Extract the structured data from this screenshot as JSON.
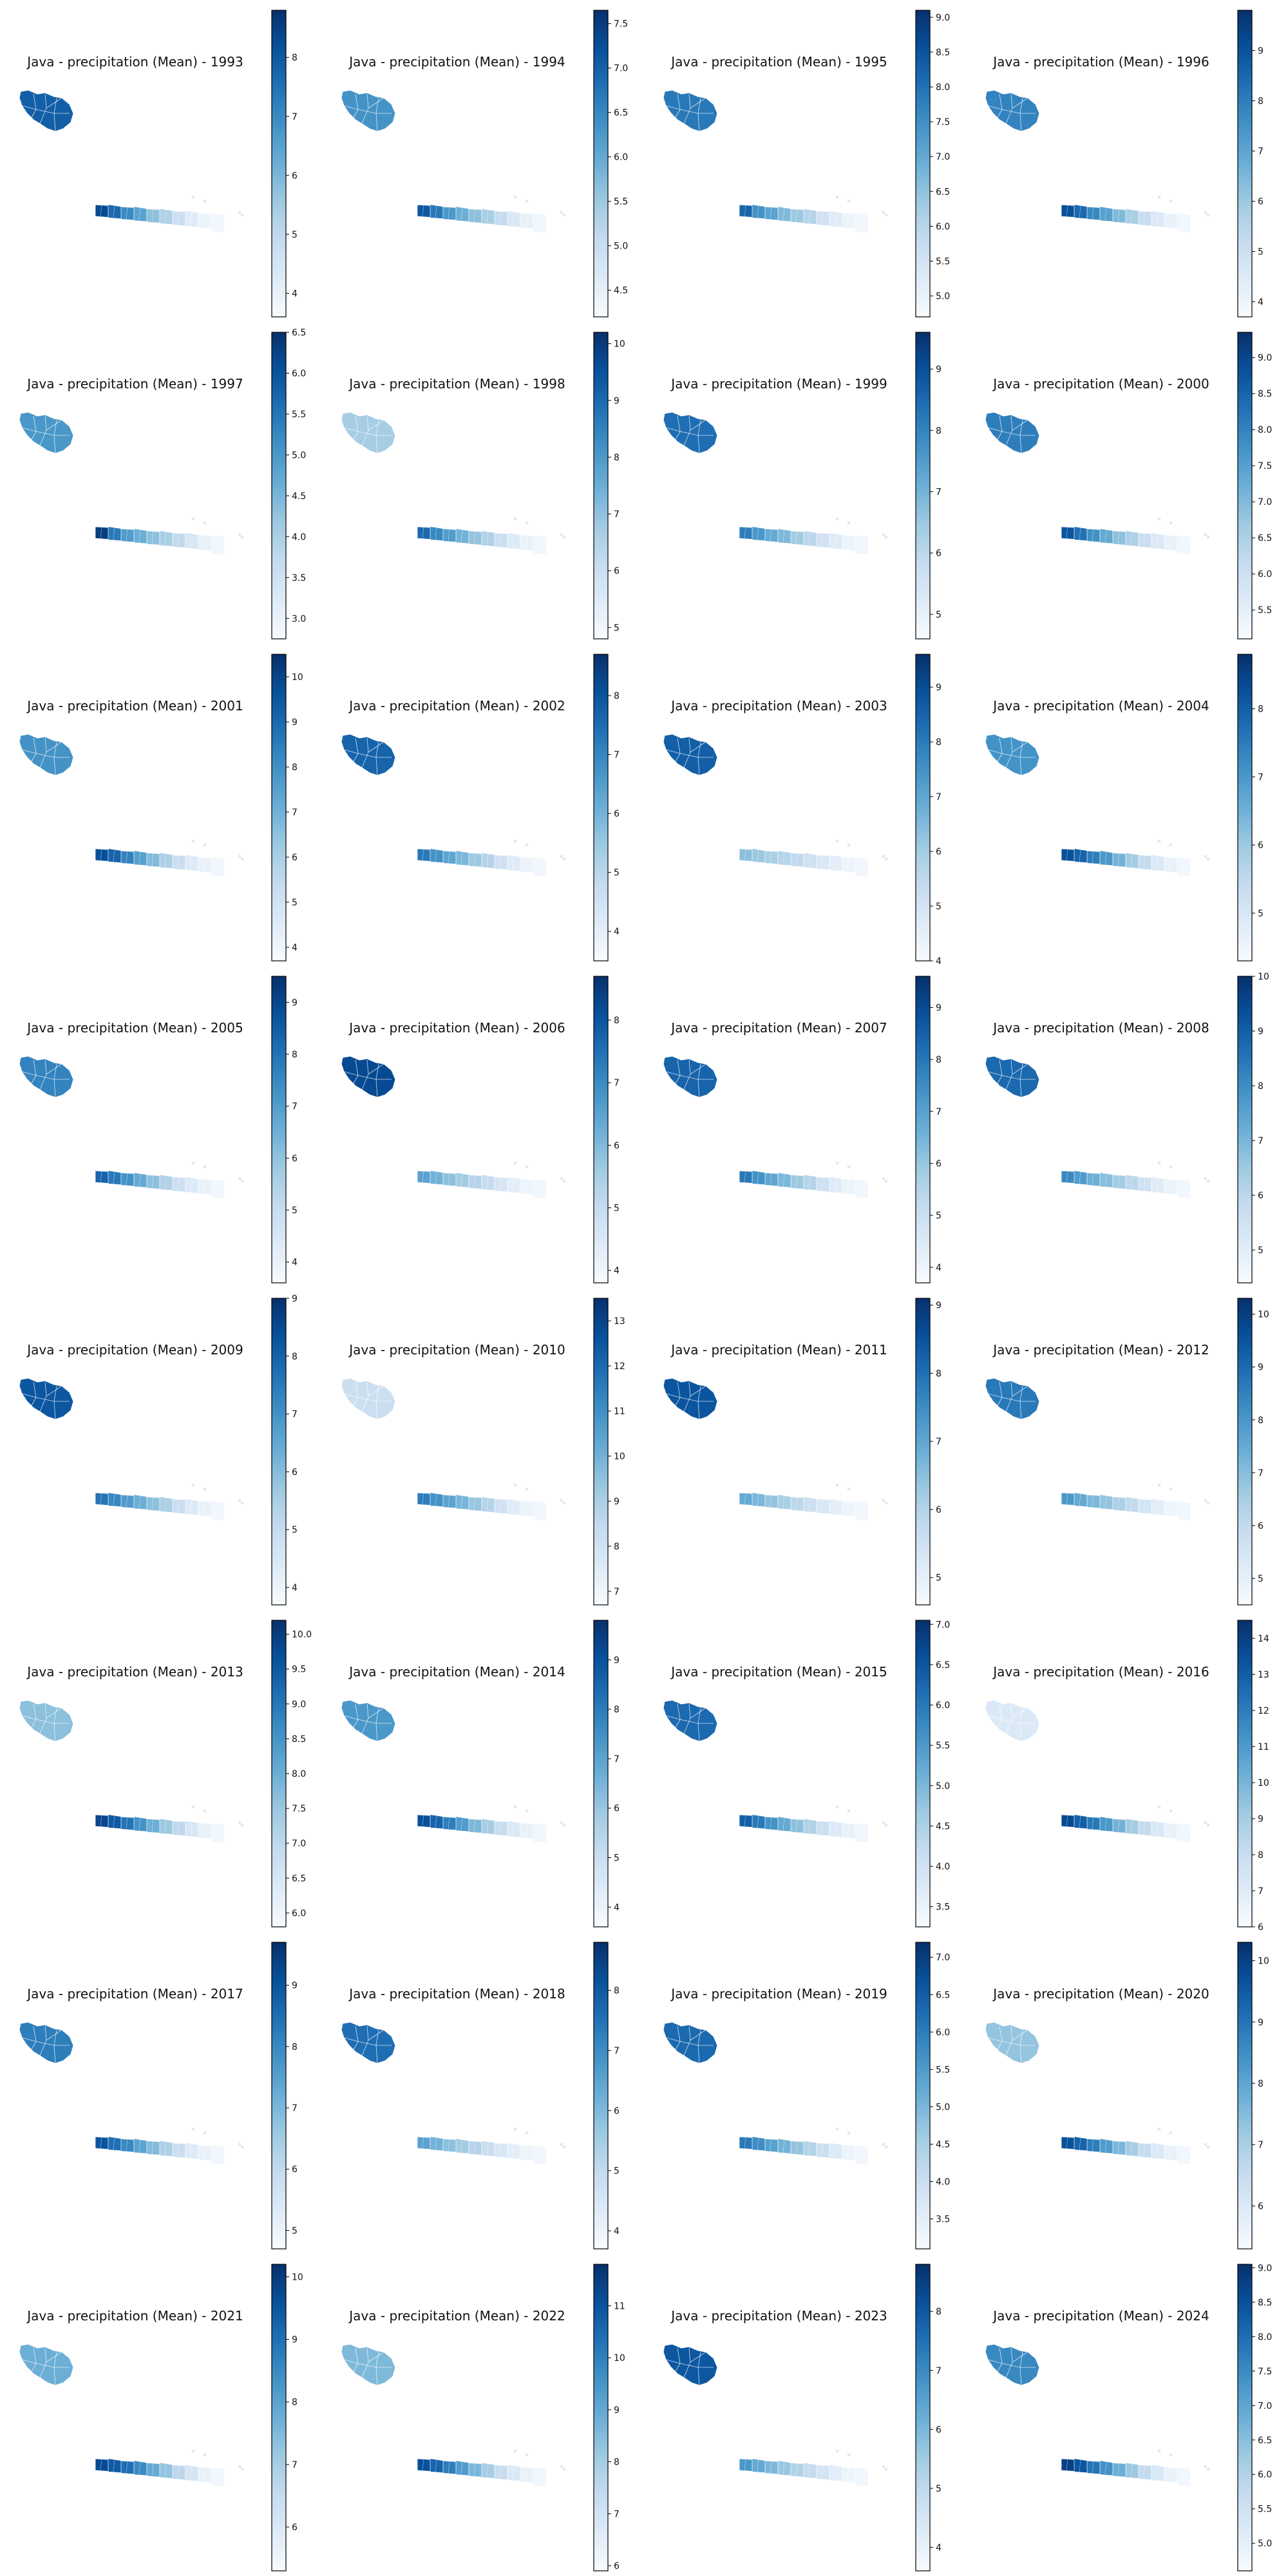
{
  "figure": {
    "colormap": "Blues",
    "colormap_stops": [
      "#f7fbff",
      "#deebf7",
      "#c6dbef",
      "#9ecae1",
      "#6baed6",
      "#4292c6",
      "#2171b5",
      "#08519c",
      "#08306b"
    ],
    "background": "#ffffff",
    "panel_bg": "#ffffff",
    "region_edge": "#ffffff"
  },
  "chart_data": [
    {
      "type": "choropleth",
      "year": 1993,
      "title": "Java - precipitation (Mean) - 1993",
      "colorbar_ticks": [
        "4",
        "5",
        "6",
        "7",
        "8"
      ],
      "colorbar_tick_values": [
        4,
        5,
        6,
        7,
        8
      ],
      "vmin": 3.6,
      "vmax": 8.8,
      "west_level": 0.82,
      "gradient_levels": [
        0.9,
        0.78,
        0.65,
        0.55,
        0.42,
        0.32,
        0.22,
        0.12,
        0.06,
        0.03
      ]
    },
    {
      "type": "choropleth",
      "year": 1994,
      "title": "Java - precipitation (Mean) - 1994",
      "colorbar_ticks": [
        "4.5",
        "5.0",
        "5.5",
        "6.0",
        "6.5",
        "7.0",
        "7.5"
      ],
      "colorbar_tick_values": [
        4.5,
        5.0,
        5.5,
        6.0,
        6.5,
        7.0,
        7.5
      ],
      "vmin": 4.2,
      "vmax": 7.65,
      "west_level": 0.62,
      "gradient_levels": [
        0.85,
        0.72,
        0.6,
        0.5,
        0.42,
        0.34,
        0.25,
        0.15,
        0.08,
        0.04
      ]
    },
    {
      "type": "choropleth",
      "year": 1995,
      "title": "Java - precipitation (Mean) - 1995",
      "colorbar_ticks": [
        "5.0",
        "5.5",
        "6.0",
        "6.5",
        "7.0",
        "7.5",
        "8.0",
        "8.5",
        "9.0"
      ],
      "colorbar_tick_values": [
        5.0,
        5.5,
        6.0,
        6.5,
        7.0,
        7.5,
        8.0,
        8.5,
        9.0
      ],
      "vmin": 4.7,
      "vmax": 9.1,
      "west_level": 0.72,
      "gradient_levels": [
        0.8,
        0.62,
        0.55,
        0.45,
        0.38,
        0.3,
        0.2,
        0.12,
        0.06,
        0.03
      ]
    },
    {
      "type": "choropleth",
      "year": 1996,
      "title": "Java - precipitation (Mean) - 1996",
      "colorbar_ticks": [
        "4",
        "5",
        "6",
        "7",
        "8",
        "9"
      ],
      "colorbar_tick_values": [
        4,
        5,
        6,
        7,
        8,
        9
      ],
      "vmin": 3.7,
      "vmax": 9.8,
      "west_level": 0.68,
      "gradient_levels": [
        0.88,
        0.78,
        0.66,
        0.56,
        0.45,
        0.34,
        0.24,
        0.14,
        0.07,
        0.03
      ]
    },
    {
      "type": "choropleth",
      "year": 1997,
      "title": "Java - precipitation (Mean) - 1997",
      "colorbar_ticks": [
        "3.0",
        "3.5",
        "4.0",
        "4.5",
        "5.0",
        "5.5",
        "6.0",
        "6.5"
      ],
      "colorbar_tick_values": [
        3.0,
        3.5,
        4.0,
        4.5,
        5.0,
        5.5,
        6.0,
        6.5
      ],
      "vmin": 2.75,
      "vmax": 6.5,
      "west_level": 0.6,
      "gradient_levels": [
        0.95,
        0.72,
        0.58,
        0.5,
        0.42,
        0.34,
        0.26,
        0.16,
        0.08,
        0.04
      ]
    },
    {
      "type": "choropleth",
      "year": 1998,
      "title": "Java - precipitation (Mean) - 1998",
      "colorbar_ticks": [
        "5",
        "6",
        "7",
        "8",
        "9",
        "10"
      ],
      "colorbar_tick_values": [
        5,
        6,
        7,
        8,
        9,
        10
      ],
      "vmin": 4.8,
      "vmax": 10.2,
      "west_level": 0.35,
      "gradient_levels": [
        0.78,
        0.66,
        0.58,
        0.48,
        0.4,
        0.32,
        0.22,
        0.13,
        0.07,
        0.03
      ]
    },
    {
      "type": "choropleth",
      "year": 1999,
      "title": "Java - precipitation (Mean) - 1999",
      "colorbar_ticks": [
        "5",
        "6",
        "7",
        "8",
        "9"
      ],
      "colorbar_tick_values": [
        5,
        6,
        7,
        8,
        9
      ],
      "vmin": 4.6,
      "vmax": 9.6,
      "west_level": 0.76,
      "gradient_levels": [
        0.7,
        0.6,
        0.52,
        0.45,
        0.36,
        0.28,
        0.2,
        0.12,
        0.06,
        0.03
      ]
    },
    {
      "type": "choropleth",
      "year": 2000,
      "title": "Java - precipitation (Mean) - 2000",
      "colorbar_ticks": [
        "5.5",
        "6.0",
        "6.5",
        "7.0",
        "7.5",
        "8.0",
        "8.5",
        "9.0"
      ],
      "colorbar_tick_values": [
        5.5,
        6.0,
        6.5,
        7.0,
        7.5,
        8.0,
        8.5,
        9.0
      ],
      "vmin": 5.1,
      "vmax": 9.35,
      "west_level": 0.7,
      "gradient_levels": [
        0.86,
        0.75,
        0.63,
        0.52,
        0.42,
        0.33,
        0.23,
        0.14,
        0.07,
        0.03
      ]
    },
    {
      "type": "choropleth",
      "year": 2001,
      "title": "Java - precipitation (Mean) - 2001",
      "colorbar_ticks": [
        "4",
        "5",
        "6",
        "7",
        "8",
        "9",
        "10"
      ],
      "colorbar_tick_values": [
        4,
        5,
        6,
        7,
        8,
        9,
        10
      ],
      "vmin": 3.7,
      "vmax": 10.5,
      "west_level": 0.62,
      "gradient_levels": [
        0.88,
        0.8,
        0.68,
        0.56,
        0.44,
        0.33,
        0.23,
        0.13,
        0.07,
        0.03
      ]
    },
    {
      "type": "choropleth",
      "year": 2002,
      "title": "Java - precipitation (Mean) - 2002",
      "colorbar_ticks": [
        "4",
        "5",
        "6",
        "7",
        "8"
      ],
      "colorbar_tick_values": [
        4,
        5,
        6,
        7,
        8
      ],
      "vmin": 3.5,
      "vmax": 8.7,
      "west_level": 0.8,
      "gradient_levels": [
        0.72,
        0.62,
        0.54,
        0.46,
        0.38,
        0.3,
        0.2,
        0.12,
        0.06,
        0.03
      ]
    },
    {
      "type": "choropleth",
      "year": 2003,
      "title": "Java - precipitation (Mean) - 2003",
      "colorbar_ticks": [
        "4",
        "5",
        "6",
        "7",
        "8",
        "9"
      ],
      "colorbar_tick_values": [
        4,
        5,
        6,
        7,
        8,
        9
      ],
      "vmin": 4.0,
      "vmax": 9.6,
      "west_level": 0.82,
      "gradient_levels": [
        0.42,
        0.38,
        0.34,
        0.3,
        0.26,
        0.2,
        0.15,
        0.1,
        0.05,
        0.03
      ]
    },
    {
      "type": "choropleth",
      "year": 2004,
      "title": "Java - precipitation (Mean) - 2004",
      "colorbar_ticks": [
        "5",
        "6",
        "7",
        "8"
      ],
      "colorbar_tick_values": [
        5,
        6,
        7,
        8
      ],
      "vmin": 4.3,
      "vmax": 8.8,
      "west_level": 0.62,
      "gradient_levels": [
        0.88,
        0.8,
        0.7,
        0.6,
        0.48,
        0.36,
        0.25,
        0.14,
        0.07,
        0.03
      ]
    },
    {
      "type": "choropleth",
      "year": 2005,
      "title": "Java - precipitation (Mean) - 2005",
      "colorbar_ticks": [
        "4",
        "5",
        "6",
        "7",
        "8",
        "9"
      ],
      "colorbar_tick_values": [
        4,
        5,
        6,
        7,
        8,
        9
      ],
      "vmin": 3.6,
      "vmax": 9.5,
      "west_level": 0.68,
      "gradient_levels": [
        0.8,
        0.72,
        0.62,
        0.52,
        0.42,
        0.32,
        0.22,
        0.13,
        0.07,
        0.03
      ]
    },
    {
      "type": "choropleth",
      "year": 2006,
      "title": "Java - precipitation (Mean) - 2006",
      "colorbar_ticks": [
        "4",
        "5",
        "6",
        "7",
        "8"
      ],
      "colorbar_tick_values": [
        4,
        5,
        6,
        7,
        8
      ],
      "vmin": 3.8,
      "vmax": 8.7,
      "west_level": 0.9,
      "gradient_levels": [
        0.55,
        0.48,
        0.42,
        0.36,
        0.3,
        0.24,
        0.17,
        0.1,
        0.05,
        0.03
      ]
    },
    {
      "type": "choropleth",
      "year": 2007,
      "title": "Java - precipitation (Mean) - 2007",
      "colorbar_ticks": [
        "4",
        "5",
        "6",
        "7",
        "8",
        "9"
      ],
      "colorbar_tick_values": [
        4,
        5,
        6,
        7,
        8,
        9
      ],
      "vmin": 3.7,
      "vmax": 9.6,
      "west_level": 0.8,
      "gradient_levels": [
        0.72,
        0.62,
        0.54,
        0.46,
        0.38,
        0.3,
        0.21,
        0.12,
        0.06,
        0.03
      ]
    },
    {
      "type": "choropleth",
      "year": 2008,
      "title": "Java - precipitation (Mean) - 2008",
      "colorbar_ticks": [
        "5",
        "6",
        "7",
        "8",
        "9",
        "10"
      ],
      "colorbar_tick_values": [
        5,
        6,
        7,
        8,
        9,
        10
      ],
      "vmin": 4.4,
      "vmax": 10.0,
      "west_level": 0.78,
      "gradient_levels": [
        0.66,
        0.58,
        0.5,
        0.43,
        0.36,
        0.28,
        0.2,
        0.12,
        0.06,
        0.03
      ]
    },
    {
      "type": "choropleth",
      "year": 2009,
      "title": "Java - precipitation (Mean) - 2009",
      "colorbar_ticks": [
        "4",
        "5",
        "6",
        "7",
        "8",
        "9"
      ],
      "colorbar_tick_values": [
        4,
        5,
        6,
        7,
        8,
        9
      ],
      "vmin": 3.7,
      "vmax": 9.0,
      "west_level": 0.85,
      "gradient_levels": [
        0.74,
        0.66,
        0.58,
        0.5,
        0.42,
        0.33,
        0.23,
        0.13,
        0.07,
        0.03
      ]
    },
    {
      "type": "choropleth",
      "year": 2010,
      "title": "Java - precipitation (Mean) - 2010",
      "colorbar_ticks": [
        "7",
        "8",
        "9",
        "10",
        "11",
        "12",
        "13"
      ],
      "colorbar_tick_values": [
        7,
        8,
        9,
        10,
        11,
        12,
        13
      ],
      "vmin": 6.7,
      "vmax": 13.5,
      "west_level": 0.22,
      "gradient_levels": [
        0.7,
        0.62,
        0.55,
        0.47,
        0.39,
        0.3,
        0.2,
        0.12,
        0.06,
        0.03
      ]
    },
    {
      "type": "choropleth",
      "year": 2011,
      "title": "Java - precipitation (Mean) - 2011",
      "colorbar_ticks": [
        "5",
        "6",
        "7",
        "8",
        "9"
      ],
      "colorbar_tick_values": [
        5,
        6,
        7,
        8,
        9
      ],
      "vmin": 4.6,
      "vmax": 9.1,
      "west_level": 0.86,
      "gradient_levels": [
        0.52,
        0.46,
        0.4,
        0.34,
        0.28,
        0.22,
        0.16,
        0.1,
        0.05,
        0.03
      ]
    },
    {
      "type": "choropleth",
      "year": 2012,
      "title": "Java - precipitation (Mean) - 2012",
      "colorbar_ticks": [
        "5",
        "6",
        "7",
        "8",
        "9",
        "10"
      ],
      "colorbar_tick_values": [
        5,
        6,
        7,
        8,
        9,
        10
      ],
      "vmin": 4.5,
      "vmax": 10.3,
      "west_level": 0.72,
      "gradient_levels": [
        0.6,
        0.52,
        0.46,
        0.4,
        0.33,
        0.26,
        0.18,
        0.11,
        0.05,
        0.03
      ]
    },
    {
      "type": "choropleth",
      "year": 2013,
      "title": "Java - precipitation (Mean) - 2013",
      "colorbar_ticks": [
        "6.0",
        "6.5",
        "7.0",
        "7.5",
        "8.0",
        "8.5",
        "9.0",
        "9.5",
        "10.0"
      ],
      "colorbar_tick_values": [
        6.0,
        6.5,
        7.0,
        7.5,
        8.0,
        8.5,
        9.0,
        9.5,
        10.0
      ],
      "vmin": 5.8,
      "vmax": 10.2,
      "west_level": 0.42,
      "gradient_levels": [
        0.92,
        0.84,
        0.74,
        0.62,
        0.5,
        0.38,
        0.27,
        0.16,
        0.08,
        0.03
      ]
    },
    {
      "type": "choropleth",
      "year": 2014,
      "title": "Java - precipitation (Mean) - 2014",
      "colorbar_ticks": [
        "4",
        "5",
        "6",
        "7",
        "8",
        "9"
      ],
      "colorbar_tick_values": [
        4,
        5,
        6,
        7,
        8,
        9
      ],
      "vmin": 3.6,
      "vmax": 9.8,
      "west_level": 0.6,
      "gradient_levels": [
        0.88,
        0.8,
        0.7,
        0.58,
        0.46,
        0.35,
        0.24,
        0.14,
        0.07,
        0.03
      ]
    },
    {
      "type": "choropleth",
      "year": 2015,
      "title": "Java - precipitation (Mean) - 2015",
      "colorbar_ticks": [
        "3.5",
        "4.0",
        "4.5",
        "5.0",
        "5.5",
        "6.0",
        "6.5",
        "7.0"
      ],
      "colorbar_tick_values": [
        3.5,
        4.0,
        4.5,
        5.0,
        5.5,
        6.0,
        6.5,
        7.0
      ],
      "vmin": 3.25,
      "vmax": 7.05,
      "west_level": 0.78,
      "gradient_levels": [
        0.82,
        0.72,
        0.62,
        0.52,
        0.42,
        0.32,
        0.22,
        0.13,
        0.07,
        0.03
      ]
    },
    {
      "type": "choropleth",
      "year": 2016,
      "title": "Java - precipitation (Mean) - 2016",
      "colorbar_ticks": [
        "6",
        "7",
        "8",
        "9",
        "10",
        "11",
        "12",
        "13",
        "14"
      ],
      "colorbar_tick_values": [
        6,
        7,
        8,
        9,
        10,
        11,
        12,
        13,
        14
      ],
      "vmin": 6.0,
      "vmax": 14.5,
      "west_level": 0.14,
      "gradient_levels": [
        0.9,
        0.82,
        0.72,
        0.6,
        0.48,
        0.36,
        0.25,
        0.15,
        0.07,
        0.03
      ]
    },
    {
      "type": "choropleth",
      "year": 2017,
      "title": "Java - precipitation (Mean) - 2017",
      "colorbar_ticks": [
        "5",
        "6",
        "7",
        "8",
        "9"
      ],
      "colorbar_tick_values": [
        5,
        6,
        7,
        8,
        9
      ],
      "vmin": 4.7,
      "vmax": 9.7,
      "west_level": 0.7,
      "gradient_levels": [
        0.86,
        0.76,
        0.66,
        0.55,
        0.44,
        0.33,
        0.23,
        0.13,
        0.07,
        0.03
      ]
    },
    {
      "type": "choropleth",
      "year": 2018,
      "title": "Java - precipitation (Mean) - 2018",
      "colorbar_ticks": [
        "4",
        "5",
        "6",
        "7",
        "8"
      ],
      "colorbar_tick_values": [
        4,
        5,
        6,
        7,
        8
      ],
      "vmin": 3.7,
      "vmax": 8.8,
      "west_level": 0.76,
      "gradient_levels": [
        0.55,
        0.48,
        0.42,
        0.36,
        0.3,
        0.23,
        0.16,
        0.1,
        0.05,
        0.03
      ]
    },
    {
      "type": "choropleth",
      "year": 2019,
      "title": "Java - precipitation (Mean) - 2019",
      "colorbar_ticks": [
        "3.5",
        "4.0",
        "4.5",
        "5.0",
        "5.5",
        "6.0",
        "6.5",
        "7.0"
      ],
      "colorbar_tick_values": [
        3.5,
        4.0,
        4.5,
        5.0,
        5.5,
        6.0,
        6.5,
        7.0
      ],
      "vmin": 3.1,
      "vmax": 7.2,
      "west_level": 0.78,
      "gradient_levels": [
        0.72,
        0.64,
        0.56,
        0.48,
        0.4,
        0.31,
        0.22,
        0.13,
        0.06,
        0.03
      ]
    },
    {
      "type": "choropleth",
      "year": 2020,
      "title": "Java - precipitation (Mean) - 2020",
      "colorbar_ticks": [
        "6",
        "7",
        "8",
        "9",
        "10"
      ],
      "colorbar_tick_values": [
        6,
        7,
        8,
        9,
        10
      ],
      "vmin": 5.3,
      "vmax": 10.3,
      "west_level": 0.4,
      "gradient_levels": [
        0.88,
        0.8,
        0.7,
        0.58,
        0.46,
        0.35,
        0.24,
        0.14,
        0.07,
        0.03
      ]
    },
    {
      "type": "choropleth",
      "year": 2021,
      "title": "Java - precipitation (Mean) - 2021",
      "colorbar_ticks": [
        "6",
        "7",
        "8",
        "9",
        "10"
      ],
      "colorbar_tick_values": [
        6,
        7,
        8,
        9,
        10
      ],
      "vmin": 5.3,
      "vmax": 10.2,
      "west_level": 0.5,
      "gradient_levels": [
        0.9,
        0.84,
        0.76,
        0.65,
        0.52,
        0.4,
        0.28,
        0.17,
        0.08,
        0.03
      ]
    },
    {
      "type": "choropleth",
      "year": 2022,
      "title": "Java - precipitation (Mean) - 2022",
      "colorbar_ticks": [
        "6",
        "7",
        "8",
        "9",
        "10",
        "11"
      ],
      "colorbar_tick_values": [
        6,
        7,
        8,
        9,
        10,
        11
      ],
      "vmin": 5.9,
      "vmax": 11.8,
      "west_level": 0.45,
      "gradient_levels": [
        0.88,
        0.8,
        0.7,
        0.58,
        0.46,
        0.35,
        0.24,
        0.14,
        0.07,
        0.03
      ]
    },
    {
      "type": "choropleth",
      "year": 2023,
      "title": "Java - precipitation (Mean) - 2023",
      "colorbar_ticks": [
        "4",
        "5",
        "6",
        "7",
        "8"
      ],
      "colorbar_tick_values": [
        4,
        5,
        6,
        7,
        8
      ],
      "vmin": 3.6,
      "vmax": 8.8,
      "west_level": 0.85,
      "gradient_levels": [
        0.6,
        0.52,
        0.46,
        0.39,
        0.32,
        0.25,
        0.18,
        0.11,
        0.05,
        0.03
      ]
    },
    {
      "type": "choropleth",
      "year": 2024,
      "title": "Java - precipitation (Mean) - 2024",
      "colorbar_ticks": [
        "5.0",
        "5.5",
        "6.0",
        "6.5",
        "7.0",
        "7.5",
        "8.0",
        "8.5",
        "9.0"
      ],
      "colorbar_tick_values": [
        5.0,
        5.5,
        6.0,
        6.5,
        7.0,
        7.5,
        8.0,
        8.5,
        9.0
      ],
      "vmin": 4.6,
      "vmax": 9.05,
      "west_level": 0.66,
      "gradient_levels": [
        0.94,
        0.86,
        0.74,
        0.62,
        0.5,
        0.38,
        0.26,
        0.15,
        0.07,
        0.03
      ]
    }
  ]
}
